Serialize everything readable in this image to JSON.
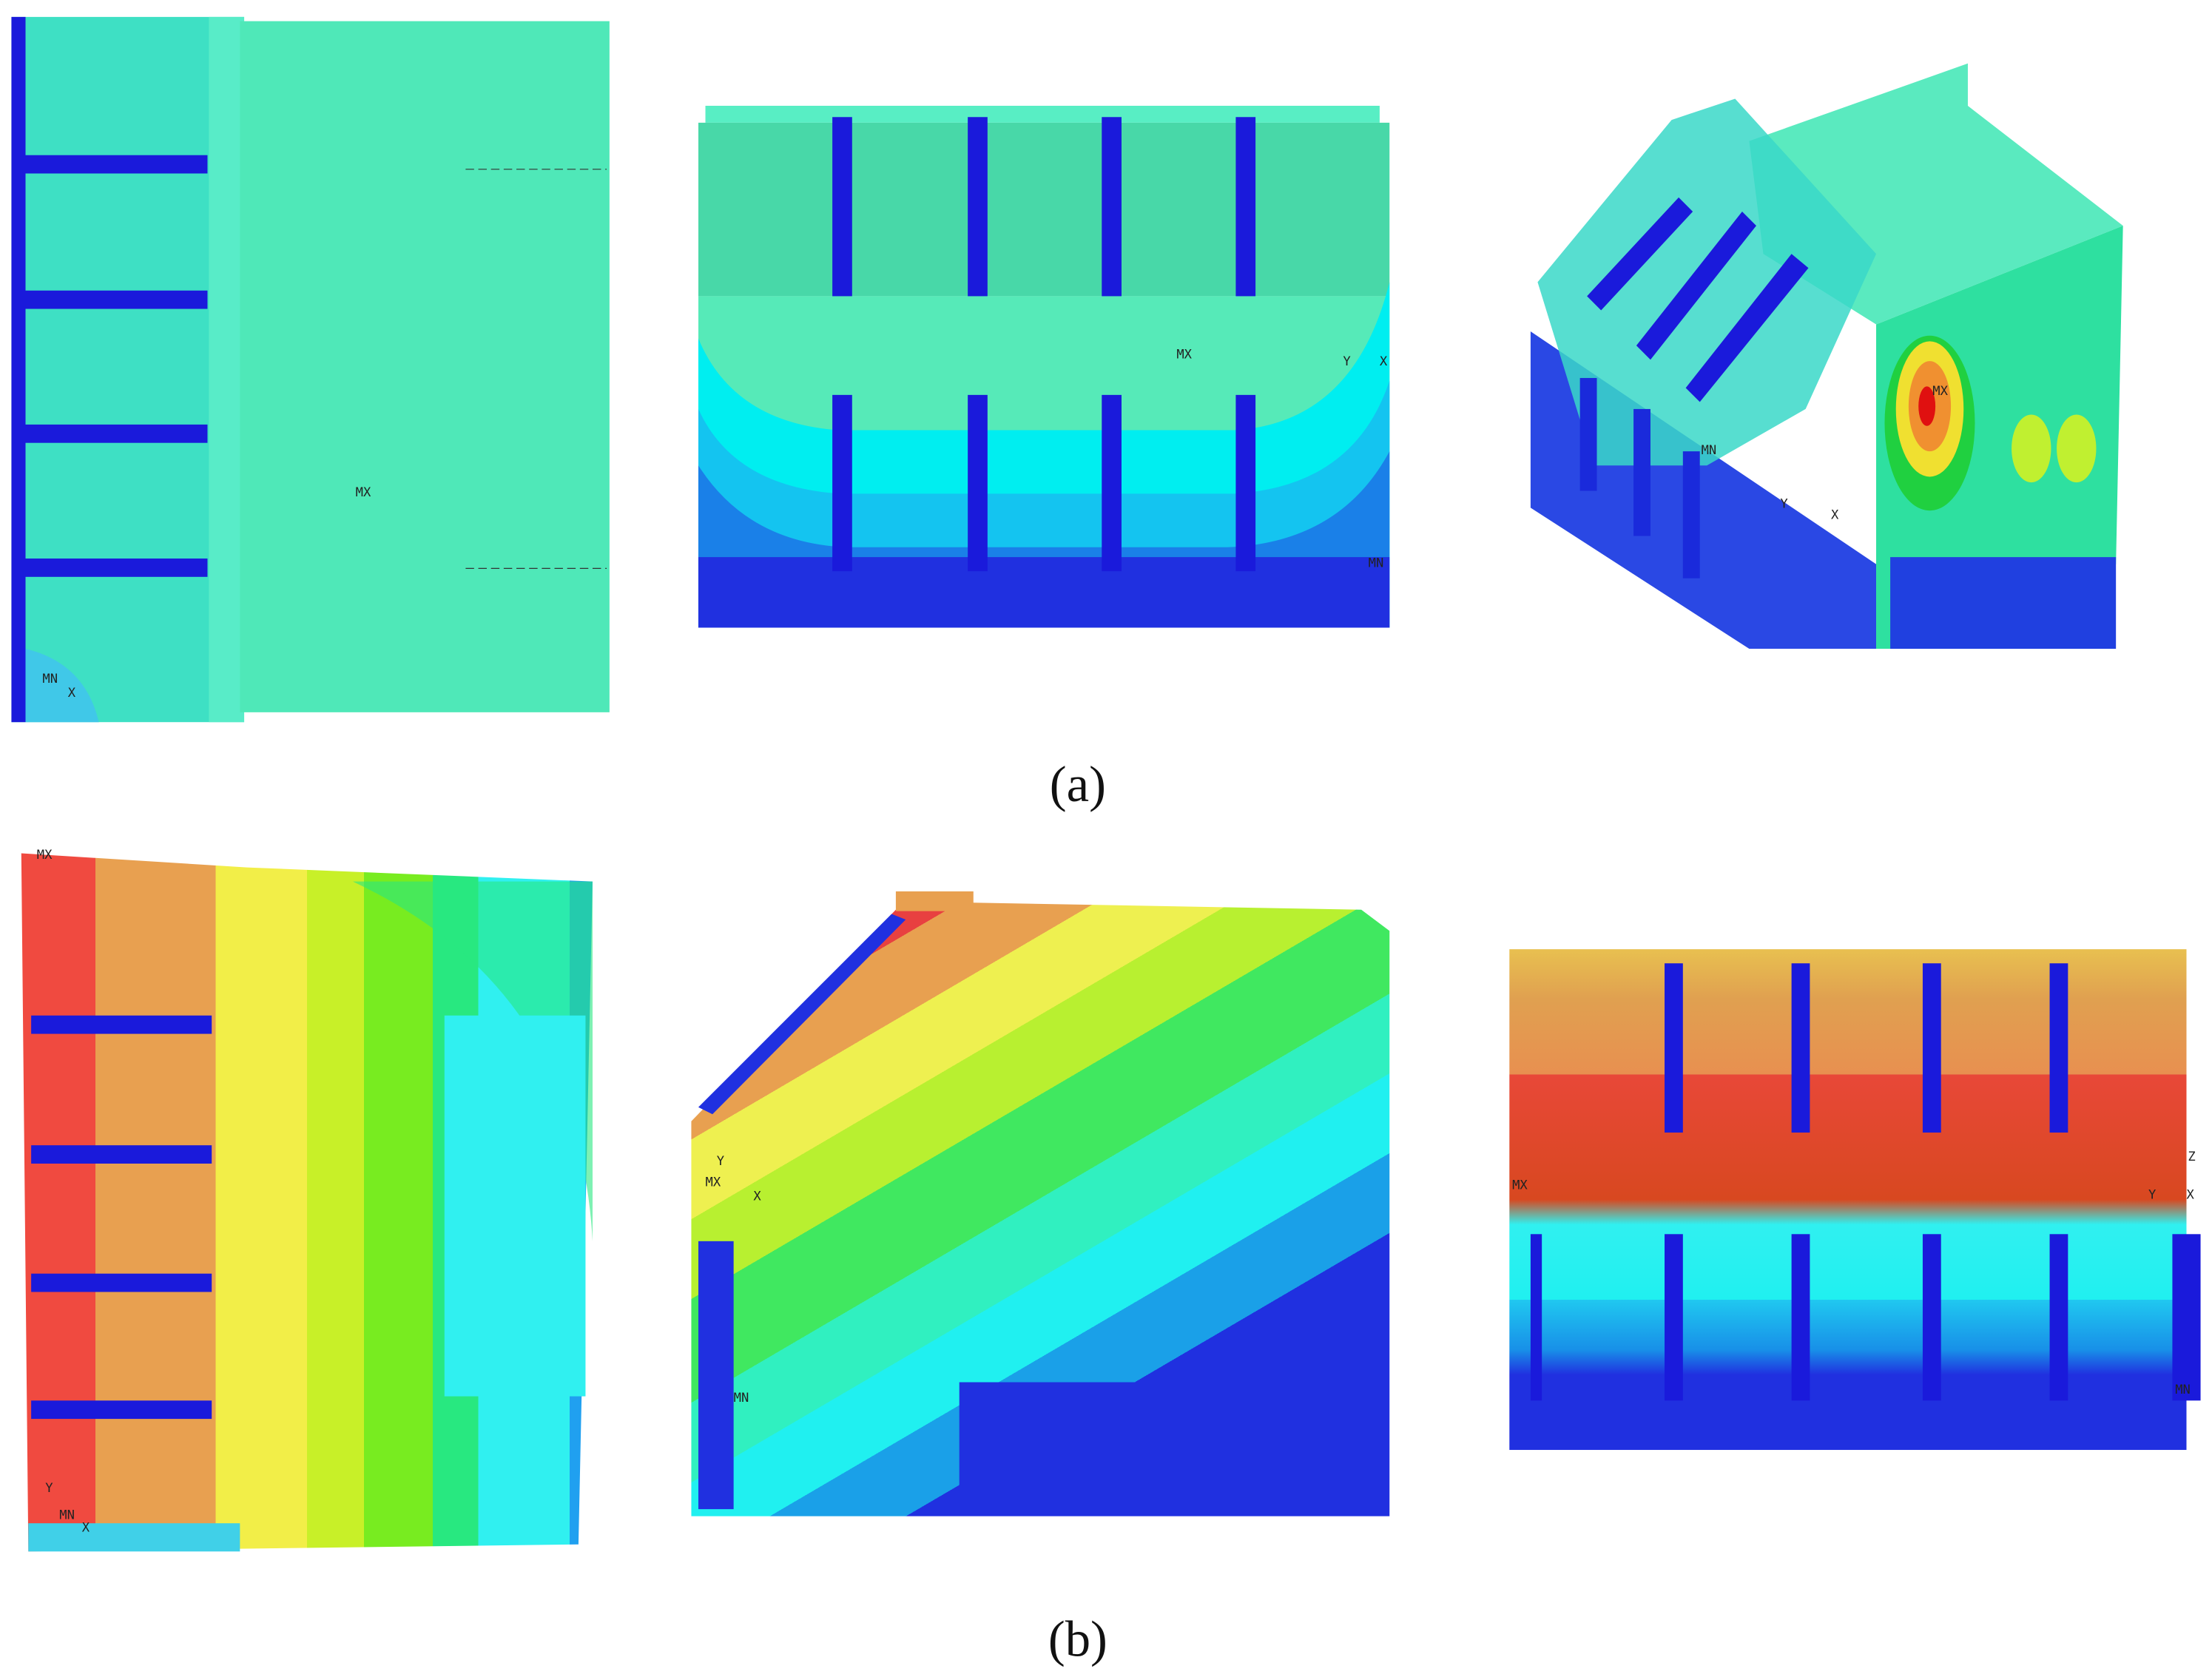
{
  "panels": [
    {
      "caption": "(a)",
      "views": [
        {
          "labels": [
            "MX",
            "MN",
            "X"
          ]
        },
        {
          "labels": [
            "MX",
            "Y",
            "X",
            "MN"
          ]
        },
        {
          "labels": [
            "MX",
            "MN",
            "Y",
            "X"
          ]
        }
      ]
    },
    {
      "caption": "(b)",
      "views": [
        {
          "labels": [
            "MX",
            "Y",
            "MN",
            "X"
          ]
        },
        {
          "labels": [
            "Y",
            "MX",
            "X",
            "MN"
          ]
        },
        {
          "labels": [
            "MX",
            "Z",
            "Y",
            "X",
            "MN"
          ]
        }
      ]
    }
  ]
}
